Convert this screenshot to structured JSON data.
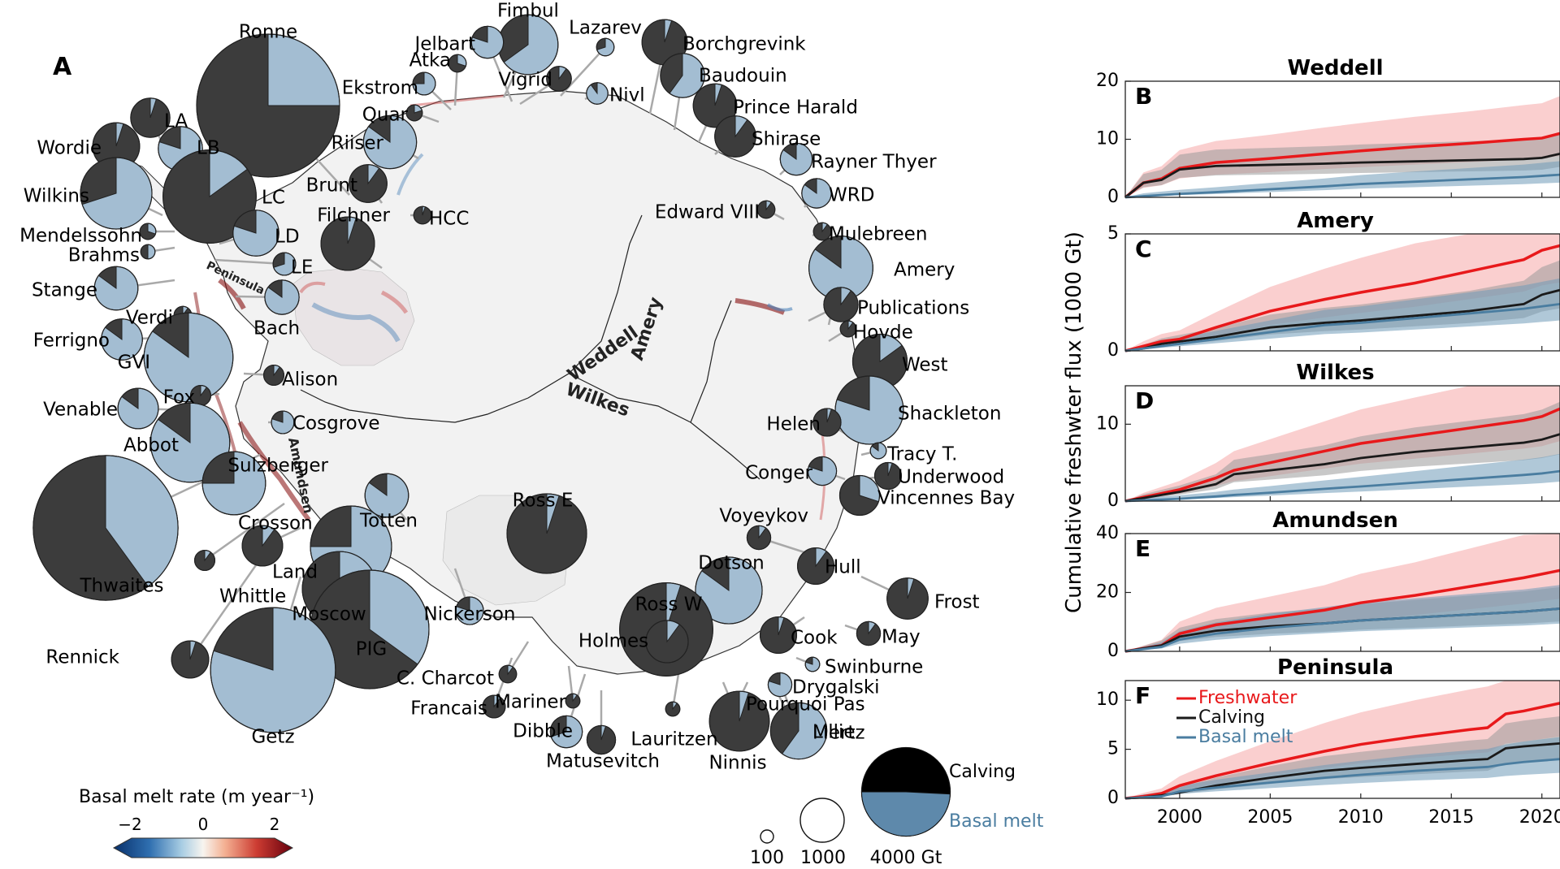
{
  "panel_a": {
    "panel_label": "A",
    "colorbar": {
      "title": "Basal melt rate (m year⁻¹)",
      "ticks": [
        "−2",
        "0",
        "2"
      ]
    },
    "pie_legend": {
      "sizes": [
        "100",
        "1000",
        "4000 Gt"
      ],
      "calving_label": "Calving",
      "basal_label": "Basal melt"
    },
    "regions": [
      "Peninsula",
      "Amundsen",
      "Weddell",
      "Amery",
      "Wilkes"
    ],
    "ice_shelves": [
      {
        "name": "Ronne",
        "total_gt": 4000,
        "basal_fraction": 0.25
      },
      {
        "name": "Fimbul",
        "total_gt": 700,
        "basal_fraction": 0.65
      },
      {
        "name": "Lazarev",
        "total_gt": 60,
        "basal_fraction": 0.7
      },
      {
        "name": "Borchgrevink",
        "total_gt": 400,
        "basal_fraction": 0.05
      },
      {
        "name": "Jelbart",
        "total_gt": 200,
        "basal_fraction": 0.8
      },
      {
        "name": "Atka",
        "total_gt": 60,
        "basal_fraction": 0.3
      },
      {
        "name": "Vigrid",
        "total_gt": 120,
        "basal_fraction": 0.1
      },
      {
        "name": "Nivl",
        "total_gt": 90,
        "basal_fraction": 0.9
      },
      {
        "name": "Baudouin",
        "total_gt": 380,
        "basal_fraction": 0.6
      },
      {
        "name": "Ekstrom",
        "total_gt": 100,
        "basal_fraction": 0.75
      },
      {
        "name": "Prince Harald",
        "total_gt": 370,
        "basal_fraction": 0.05
      },
      {
        "name": "Quar",
        "total_gt": 50,
        "basal_fraction": 0.2
      },
      {
        "name": "Shirase",
        "total_gt": 330,
        "basal_fraction": 0.1
      },
      {
        "name": "Riiser",
        "total_gt": 550,
        "basal_fraction": 0.85
      },
      {
        "name": "Rayner Thyer",
        "total_gt": 200,
        "basal_fraction": 0.85
      },
      {
        "name": "Brunt",
        "total_gt": 280,
        "basal_fraction": 0.1
      },
      {
        "name": "WRD",
        "total_gt": 170,
        "basal_fraction": 0.85
      },
      {
        "name": "HCC",
        "total_gt": 60,
        "basal_fraction": 0.05
      },
      {
        "name": "Filchner",
        "total_gt": 560,
        "basal_fraction": 0.05
      },
      {
        "name": "Edward VIII",
        "total_gt": 60,
        "basal_fraction": 0.1
      },
      {
        "name": "Mulebreen",
        "total_gt": 60,
        "basal_fraction": 0.1
      },
      {
        "name": "LA",
        "total_gt": 300,
        "basal_fraction": 0.05
      },
      {
        "name": "Wordie",
        "total_gt": 430,
        "basal_fraction": 0.05
      },
      {
        "name": "LB",
        "total_gt": 380,
        "basal_fraction": 0.8
      },
      {
        "name": "Wilkins",
        "total_gt": 1000,
        "basal_fraction": 0.7
      },
      {
        "name": "LC",
        "total_gt": 1700,
        "basal_fraction": 0.15
      },
      {
        "name": "Mendelssohn",
        "total_gt": 50,
        "basal_fraction": 0.3
      },
      {
        "name": "LD",
        "total_gt": 410,
        "basal_fraction": 0.8
      },
      {
        "name": "Brahms",
        "total_gt": 40,
        "basal_fraction": 0.5
      },
      {
        "name": "LE",
        "total_gt": 100,
        "basal_fraction": 0.7
      },
      {
        "name": "Amery",
        "total_gt": 800,
        "basal_fraction": 0.85
      },
      {
        "name": "Stange",
        "total_gt": 370,
        "basal_fraction": 0.85
      },
      {
        "name": "Bach",
        "total_gt": 230,
        "basal_fraction": 0.85
      },
      {
        "name": "Verdi",
        "total_gt": 60,
        "basal_fraction": 0.1
      },
      {
        "name": "Publications",
        "total_gt": 230,
        "basal_fraction": 0.1
      },
      {
        "name": "Ferrigno",
        "total_gt": 330,
        "basal_fraction": 0.85
      },
      {
        "name": "Hovde",
        "total_gt": 50,
        "basal_fraction": 0.1
      },
      {
        "name": "GVI",
        "total_gt": 1550,
        "basal_fraction": 0.85
      },
      {
        "name": "Alison",
        "total_gt": 80,
        "basal_fraction": 0.1
      },
      {
        "name": "West",
        "total_gt": 580,
        "basal_fraction": 0.15
      },
      {
        "name": "Fox",
        "total_gt": 80,
        "basal_fraction": 0.1
      },
      {
        "name": "Venable",
        "total_gt": 320,
        "basal_fraction": 0.85
      },
      {
        "name": "Shackleton",
        "total_gt": 910,
        "basal_fraction": 0.8
      },
      {
        "name": "Abbot",
        "total_gt": 1230,
        "basal_fraction": 0.85
      },
      {
        "name": "Cosgrove",
        "total_gt": 100,
        "basal_fraction": 0.8
      },
      {
        "name": "Helen",
        "total_gt": 150,
        "basal_fraction": 0.05
      },
      {
        "name": "Tracy T.",
        "total_gt": 50,
        "basal_fraction": 0.85
      },
      {
        "name": "Sulzberger",
        "total_gt": 370,
        "basal_fraction": 0.85
      },
      {
        "name": "Underwood",
        "total_gt": 140,
        "basal_fraction": 0.05
      },
      {
        "name": "Conger",
        "total_gt": 160,
        "basal_fraction": 0.8
      },
      {
        "name": "Vincennes Bay",
        "total_gt": 310,
        "basal_fraction": 0.3
      },
      {
        "name": "Thwaites",
        "total_gt": 4100,
        "basal_fraction": 0.4
      },
      {
        "name": "Ross E",
        "total_gt": 1240,
        "basal_fraction": 0.05
      },
      {
        "name": "Crosson",
        "total_gt": 780,
        "basal_fraction": 0.75
      },
      {
        "name": "Voyeykov",
        "total_gt": 110,
        "basal_fraction": 0.1
      },
      {
        "name": "Totten",
        "total_gt": 1290,
        "basal_fraction": 0.75
      },
      {
        "name": "Land",
        "total_gt": 320,
        "basal_fraction": 0.1
      },
      {
        "name": "Hull",
        "total_gt": 260,
        "basal_fraction": 0.1
      },
      {
        "name": "Whittle",
        "total_gt": 80,
        "basal_fraction": 0.1
      },
      {
        "name": "Dotson",
        "total_gt": 870,
        "basal_fraction": 0.85
      },
      {
        "name": "Frost",
        "total_gt": 330,
        "basal_fraction": 0.05
      },
      {
        "name": "Moscow",
        "total_gt": 1090,
        "basal_fraction": 0.5
      },
      {
        "name": "Nickerson",
        "total_gt": 150,
        "basal_fraction": 0.8
      },
      {
        "name": "Ross W",
        "total_gt": 1700,
        "basal_fraction": 0.05
      },
      {
        "name": "Cook",
        "total_gt": 260,
        "basal_fraction": 0.05
      },
      {
        "name": "May",
        "total_gt": 110,
        "basal_fraction": 0.1
      },
      {
        "name": "Holmes",
        "total_gt": 350,
        "basal_fraction": 0.1
      },
      {
        "name": "Rennick",
        "total_gt": 270,
        "basal_fraction": 0.05
      },
      {
        "name": "PIG",
        "total_gt": 2750,
        "basal_fraction": 0.35
      },
      {
        "name": "Swinburne",
        "total_gt": 40,
        "basal_fraction": 0.8
      },
      {
        "name": "C. Charcot",
        "total_gt": 60,
        "basal_fraction": 0.1
      },
      {
        "name": "Drygalski",
        "total_gt": 110,
        "basal_fraction": 0.8
      },
      {
        "name": "Pourquoi Pas",
        "total_gt": 40,
        "basal_fraction": 0.1
      },
      {
        "name": "Francais",
        "total_gt": 100,
        "basal_fraction": 0.1
      },
      {
        "name": "Mariner",
        "total_gt": 40,
        "basal_fraction": 0.1
      },
      {
        "name": "Lillie",
        "total_gt": 80,
        "basal_fraction": 0.8
      },
      {
        "name": "Dibble",
        "total_gt": 200,
        "basal_fraction": 0.7
      },
      {
        "name": "Lauritzen",
        "total_gt": 40,
        "basal_fraction": 0.1
      },
      {
        "name": "Ninnis",
        "total_gt": 700,
        "basal_fraction": 0.05
      },
      {
        "name": "Mertz",
        "total_gt": 620,
        "basal_fraction": 0.6
      },
      {
        "name": "Matusevitch",
        "total_gt": 160,
        "basal_fraction": 0.05
      },
      {
        "name": "Getz",
        "total_gt": 3050,
        "basal_fraction": 0.8
      }
    ]
  },
  "panels_right": {
    "ylabel": "Cumulative freshwter flux (1000 Gt)",
    "x_ticks": [
      "2000",
      "2005",
      "2010",
      "2015",
      "2020"
    ],
    "legend": {
      "freshwater": "Freshwater",
      "calving": "Calving",
      "basal": "Basal melt"
    }
  },
  "colors": {
    "calving": "#3c3c3c",
    "basal_melt": "#a3bdd2",
    "freshwater": "#e8191b",
    "calving_line": "#1a1a1a",
    "basal_line": "#4a7da0",
    "land_ice": "#f2f2f2"
  },
  "chart_data": [
    {
      "type": "area",
      "panel": "B",
      "title": "Weddell",
      "xlim": [
        1997,
        2021
      ],
      "ylim": [
        0,
        20
      ],
      "y_ticks": [
        "0",
        "10",
        "20"
      ],
      "x": [
        1997,
        1998,
        1999,
        2000,
        2002,
        2005,
        2008,
        2010,
        2013,
        2016,
        2019,
        2020,
        2021
      ],
      "series": [
        {
          "name": "Freshwater",
          "values": [
            0,
            2.5,
            3.2,
            5,
            6,
            6.7,
            7.5,
            8,
            8.7,
            9.3,
            10,
            10.2,
            11
          ]
        },
        {
          "name": "Calving",
          "values": [
            0,
            2.5,
            3,
            4.8,
            5.4,
            5.6,
            5.8,
            6,
            6.2,
            6.4,
            6.6,
            6.8,
            7.5
          ]
        },
        {
          "name": "Basal melt",
          "values": [
            0,
            0.2,
            0.4,
            0.6,
            0.9,
            1.4,
            1.9,
            2.3,
            2.7,
            3.1,
            3.5,
            3.7,
            3.9
          ]
        }
      ]
    },
    {
      "type": "area",
      "panel": "C",
      "title": "Amery",
      "xlim": [
        1997,
        2021
      ],
      "ylim": [
        0,
        5
      ],
      "y_ticks": [
        "0",
        "5"
      ],
      "x": [
        1997,
        1998,
        1999,
        2000,
        2002,
        2005,
        2008,
        2010,
        2013,
        2016,
        2019,
        2020,
        2021
      ],
      "series": [
        {
          "name": "Freshwater",
          "values": [
            0,
            0.2,
            0.4,
            0.5,
            1.0,
            1.7,
            2.2,
            2.5,
            2.9,
            3.4,
            3.9,
            4.3,
            4.5
          ]
        },
        {
          "name": "Calving",
          "values": [
            0,
            0.1,
            0.3,
            0.4,
            0.6,
            1.0,
            1.2,
            1.3,
            1.5,
            1.7,
            2.0,
            2.4,
            2.6
          ]
        },
        {
          "name": "Basal melt",
          "values": [
            0,
            0.1,
            0.2,
            0.3,
            0.5,
            0.8,
            1.1,
            1.2,
            1.4,
            1.6,
            1.8,
            1.9,
            2.0
          ]
        }
      ]
    },
    {
      "type": "area",
      "panel": "D",
      "title": "Wilkes",
      "xlim": [
        1997,
        2021
      ],
      "ylim": [
        0,
        15
      ],
      "y_ticks": [
        "0",
        "10"
      ],
      "x": [
        1997,
        1998,
        1999,
        2000,
        2002,
        2003,
        2005,
        2008,
        2010,
        2013,
        2016,
        2019,
        2020,
        2021
      ],
      "series": [
        {
          "name": "Freshwater",
          "values": [
            0,
            0.5,
            1,
            1.5,
            3,
            4,
            5,
            6.5,
            7.5,
            8.5,
            9.5,
            10.5,
            11,
            12
          ]
        },
        {
          "name": "Calving",
          "values": [
            0,
            0.4,
            0.8,
            1.2,
            2.2,
            3.5,
            4,
            4.8,
            5.6,
            6.4,
            7,
            7.6,
            8,
            8.7
          ]
        },
        {
          "name": "Basal melt",
          "values": [
            0,
            0.1,
            0.2,
            0.3,
            0.6,
            0.8,
            1.1,
            1.6,
            1.9,
            2.4,
            2.9,
            3.4,
            3.6,
            3.9
          ]
        }
      ]
    },
    {
      "type": "area",
      "panel": "E",
      "title": "Amundsen",
      "xlim": [
        1997,
        2021
      ],
      "ylim": [
        0,
        40
      ],
      "y_ticks": [
        "0",
        "20",
        "40"
      ],
      "x": [
        1997,
        1999,
        2000,
        2002,
        2005,
        2008,
        2010,
        2013,
        2016,
        2019,
        2021
      ],
      "series": [
        {
          "name": "Freshwater",
          "values": [
            0,
            2,
            6,
            9,
            11.5,
            14,
            16.5,
            19,
            22,
            25,
            27.5
          ]
        },
        {
          "name": "Calving",
          "values": [
            0,
            2,
            5,
            7,
            8.5,
            9.5,
            10.5,
            11.5,
            12.5,
            13.5,
            14.5
          ]
        },
        {
          "name": "Basal melt",
          "values": [
            0,
            1.5,
            4,
            6,
            8,
            9.5,
            10.5,
            11.5,
            12.5,
            13.5,
            14.5
          ]
        }
      ]
    },
    {
      "type": "area",
      "panel": "F",
      "title": "Peninsula",
      "xlim": [
        1997,
        2021
      ],
      "ylim": [
        0,
        12
      ],
      "y_ticks": [
        "0",
        "5",
        "10"
      ],
      "x": [
        1997,
        1998,
        1999,
        2000,
        2002,
        2005,
        2008,
        2010,
        2013,
        2016,
        2017,
        2018,
        2019,
        2021
      ],
      "series": [
        {
          "name": "Freshwater",
          "values": [
            0,
            0.2,
            0.5,
            1.3,
            2.3,
            3.6,
            4.8,
            5.5,
            6.3,
            7,
            7.2,
            8.6,
            8.9,
            9.7
          ]
        },
        {
          "name": "Calving",
          "values": [
            0,
            0.1,
            0.3,
            0.6,
            1.3,
            2.1,
            2.8,
            3.1,
            3.5,
            3.9,
            4.0,
            5.1,
            5.3,
            5.6
          ]
        },
        {
          "name": "Basal melt",
          "values": [
            0,
            0.1,
            0.2,
            0.7,
            1.1,
            1.6,
            2.1,
            2.4,
            2.8,
            3.1,
            3.2,
            3.5,
            3.7,
            4.0
          ]
        }
      ]
    }
  ]
}
